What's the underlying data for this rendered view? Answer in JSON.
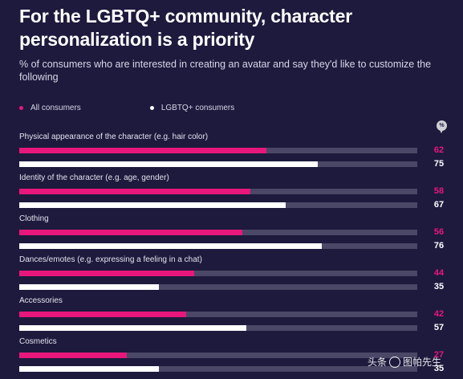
{
  "header": {
    "title": "For the LGBTQ+ community, character personalization is a priority",
    "subtitle": "% of consumers who are interested in creating an avatar and say they'd like to customize the following",
    "pct_badge": "%"
  },
  "colors": {
    "all": "#e8177c",
    "lgbt": "#ffffff",
    "track": "#4a4866",
    "background": "#1d1a3d"
  },
  "chart_data": {
    "type": "bar",
    "orientation": "horizontal",
    "title": "For the LGBTQ+ community, character personalization is a priority",
    "subtitle": "% of consumers who are interested in creating an avatar and say they'd like to customize the following",
    "categories": [
      "Physical appearance of the character (e.g. hair color)",
      "Identity of the character (e.g. age, gender)",
      "Clothing",
      "Dances/emotes (e.g. expressing a feeling in a chat)",
      "Accessories",
      "Cosmetics"
    ],
    "series": [
      {
        "name": "All consumers",
        "values": [
          62,
          58,
          56,
          44,
          42,
          27
        ]
      },
      {
        "name": "LGBTQ+ consumers",
        "values": [
          75,
          67,
          76,
          35,
          57,
          35
        ]
      }
    ],
    "xlim": [
      0,
      100
    ],
    "legend_position": "top-left",
    "grid": false
  },
  "watermark": {
    "text_before": "头条",
    "text_after": "图帕先生"
  }
}
